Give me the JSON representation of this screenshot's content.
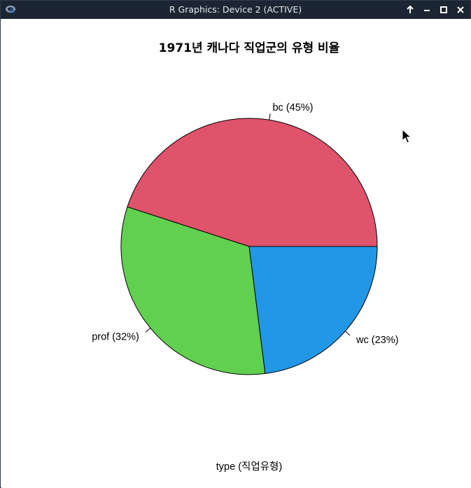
{
  "window": {
    "title": "R Graphics: Device 2 (ACTIVE)",
    "icons": [
      "r-app-icon",
      "keep-above-icon",
      "minimize-icon",
      "maximize-icon",
      "close-icon"
    ]
  },
  "chart_data": {
    "type": "pie",
    "title": "1971년 캐나다 직업군의 유형 비율",
    "xlabel": "type (직업유형)",
    "slices": [
      {
        "category": "bc",
        "percent": 45,
        "label": "bc (45%)",
        "color": "#DF536B"
      },
      {
        "category": "prof",
        "percent": 32,
        "label": "prof (32%)",
        "color": "#61D04F"
      },
      {
        "category": "wc",
        "percent": 23,
        "label": "wc (23%)",
        "color": "#2297E6"
      }
    ],
    "start_angle_deg": 0,
    "direction": "counterclockwise"
  }
}
